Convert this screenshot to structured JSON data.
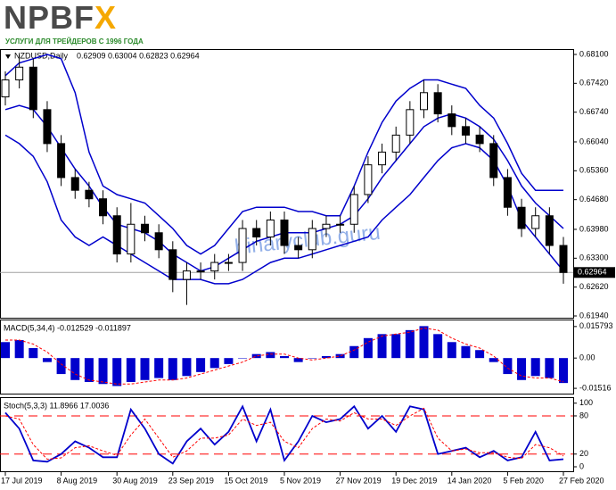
{
  "logo": {
    "name_main": "NPBF",
    "name_accent": "X",
    "tagline": "УСЛУГИ ДЛЯ ТРЕЙДЕРОВ С 1996 ГОДА"
  },
  "chart_data": [
    {
      "type": "candlestick",
      "title": "NZDUSD,Daily",
      "subtitle": "0.62909 0.63004 0.62823 0.62964",
      "watermark": "binaryclub.guru",
      "categories": [
        "17 Jul 2019",
        null,
        null,
        null,
        "8 Aug 2019",
        null,
        null,
        null,
        "30 Aug 2019",
        null,
        null,
        null,
        "23 Sep 2019",
        null,
        null,
        null,
        "15 Oct 2019",
        null,
        null,
        null,
        "5 Nov 2019",
        null,
        null,
        null,
        "27 Nov 2019",
        null,
        null,
        null,
        "19 Dec 2019",
        null,
        null,
        null,
        "14 Jan 2020",
        null,
        null,
        null,
        "5 Feb 2020",
        null,
        null,
        null,
        "27 Feb 2020"
      ],
      "open": [
        0.671,
        0.675,
        0.678,
        0.668,
        0.66,
        0.652,
        0.649,
        0.647,
        0.643,
        0.634,
        0.641,
        0.639,
        0.635,
        0.628,
        0.63,
        0.63,
        0.632,
        0.632,
        0.64,
        0.638,
        0.642,
        0.636,
        0.635,
        0.64,
        0.641,
        0.641,
        0.648,
        0.655,
        0.658,
        0.662,
        0.668,
        0.672,
        0.667,
        0.664,
        0.662,
        0.66,
        0.652,
        0.645,
        0.64,
        0.643,
        0.636
      ],
      "high": [
        0.677,
        0.681,
        0.68,
        0.67,
        0.662,
        0.654,
        0.651,
        0.649,
        0.645,
        0.646,
        0.643,
        0.641,
        0.637,
        0.632,
        0.632,
        0.634,
        0.634,
        0.642,
        0.642,
        0.644,
        0.644,
        0.638,
        0.642,
        0.643,
        0.643,
        0.65,
        0.657,
        0.66,
        0.664,
        0.67,
        0.675,
        0.674,
        0.669,
        0.666,
        0.664,
        0.662,
        0.654,
        0.647,
        0.645,
        0.645,
        0.638
      ],
      "low": [
        0.669,
        0.673,
        0.666,
        0.658,
        0.65,
        0.647,
        0.645,
        0.641,
        0.632,
        0.632,
        0.637,
        0.633,
        0.625,
        0.622,
        0.628,
        0.628,
        0.63,
        0.63,
        0.636,
        0.636,
        0.634,
        0.633,
        0.633,
        0.638,
        0.639,
        0.639,
        0.646,
        0.653,
        0.656,
        0.66,
        0.666,
        0.665,
        0.662,
        0.66,
        0.658,
        0.65,
        0.643,
        0.638,
        0.638,
        0.634,
        0.627
      ],
      "close": [
        0.675,
        0.678,
        0.668,
        0.66,
        0.652,
        0.649,
        0.647,
        0.643,
        0.634,
        0.641,
        0.639,
        0.635,
        0.628,
        0.63,
        0.63,
        0.632,
        0.632,
        0.64,
        0.638,
        0.642,
        0.636,
        0.635,
        0.64,
        0.641,
        0.641,
        0.648,
        0.655,
        0.658,
        0.662,
        0.668,
        0.672,
        0.667,
        0.664,
        0.662,
        0.66,
        0.652,
        0.645,
        0.64,
        0.643,
        0.636,
        0.62964
      ],
      "bands": [
        {
          "color": "#0000cc",
          "values": [
            0.676,
            0.679,
            0.68,
            0.681,
            0.68,
            0.672,
            0.658,
            0.65,
            0.648,
            0.647,
            0.646,
            0.643,
            0.64,
            0.636,
            0.634,
            0.636,
            0.64,
            0.644,
            0.645,
            0.645,
            0.645,
            0.644,
            0.644,
            0.643,
            0.643,
            0.65,
            0.658,
            0.665,
            0.67,
            0.673,
            0.675,
            0.675,
            0.674,
            0.673,
            0.669,
            0.666,
            0.66,
            0.653,
            0.649,
            0.649,
            0.649
          ]
        },
        {
          "color": "#0000cc",
          "values": [
            0.668,
            0.669,
            0.668,
            0.664,
            0.659,
            0.654,
            0.65,
            0.645,
            0.641,
            0.64,
            0.639,
            0.637,
            0.634,
            0.632,
            0.63,
            0.631,
            0.633,
            0.635,
            0.637,
            0.638,
            0.639,
            0.639,
            0.639,
            0.64,
            0.641,
            0.643,
            0.647,
            0.652,
            0.656,
            0.66,
            0.664,
            0.666,
            0.667,
            0.666,
            0.664,
            0.661,
            0.656,
            0.65,
            0.646,
            0.643,
            0.64
          ]
        },
        {
          "color": "#0000cc",
          "values": [
            0.662,
            0.66,
            0.657,
            0.651,
            0.642,
            0.638,
            0.636,
            0.638,
            0.636,
            0.634,
            0.632,
            0.63,
            0.628,
            0.628,
            0.628,
            0.627,
            0.627,
            0.628,
            0.63,
            0.632,
            0.633,
            0.633,
            0.634,
            0.635,
            0.636,
            0.637,
            0.638,
            0.642,
            0.645,
            0.648,
            0.652,
            0.656,
            0.659,
            0.66,
            0.659,
            0.656,
            0.65,
            0.642,
            0.638,
            0.634,
            0.63
          ]
        }
      ],
      "last_price": {
        "value": 0.62964,
        "label": "0.62964"
      },
      "ylim": [
        0.61877,
        0.68226
      ],
      "yticks": [
        {
          "value": 0.681,
          "label": "0.68100"
        },
        {
          "value": 0.6742,
          "label": "0.67420"
        },
        {
          "value": 0.6674,
          "label": "0.66740"
        },
        {
          "value": 0.6604,
          "label": "0.66040"
        },
        {
          "value": 0.6536,
          "label": "0.65360"
        },
        {
          "value": 0.6468,
          "label": "0.64680"
        },
        {
          "value": 0.6398,
          "label": "0.63980"
        },
        {
          "value": 0.633,
          "label": "0.63300"
        },
        {
          "value": 0.6262,
          "label": "0.62620"
        },
        {
          "value": 0.6194,
          "label": "0.61940"
        }
      ]
    },
    {
      "type": "bar",
      "title": "MACD(5,34,4) -0.012529 -0.011897",
      "color": "#0000cc",
      "values": [
        0.008,
        0.009,
        0.005,
        -0.002,
        -0.008,
        -0.011,
        -0.012,
        -0.013,
        -0.014,
        -0.012,
        -0.011,
        -0.01,
        -0.011,
        -0.009,
        -0.007,
        -0.005,
        -0.003,
        0.0,
        0.002,
        0.003,
        0.001,
        -0.002,
        0.0,
        0.001,
        0.002,
        0.006,
        0.01,
        0.012,
        0.012,
        0.014,
        0.016,
        0.012,
        0.008,
        0.006,
        0.004,
        -0.002,
        -0.008,
        -0.011,
        -0.009,
        -0.01,
        -0.0125
      ],
      "signal": {
        "color": "#ff0000",
        "values": [
          0.009,
          0.009,
          0.007,
          0.003,
          -0.003,
          -0.008,
          -0.011,
          -0.012,
          -0.013,
          -0.013,
          -0.012,
          -0.011,
          -0.011,
          -0.01,
          -0.008,
          -0.006,
          -0.004,
          -0.002,
          0.001,
          0.002,
          0.002,
          0.0,
          -0.001,
          0.0,
          0.001,
          0.004,
          0.008,
          0.011,
          0.012,
          0.013,
          0.015,
          0.014,
          0.01,
          0.007,
          0.005,
          0.001,
          -0.005,
          -0.009,
          -0.01,
          -0.01,
          -0.0119
        ]
      },
      "ylim": [
        -0.0178,
        0.0193
      ],
      "yticks": [
        0.015793,
        {
          "value": 0,
          "label": "0.00"
        },
        -0.01516
      ]
    },
    {
      "type": "line",
      "title": "Stoch(5,3,3) 11.8966 17.0036",
      "series": [
        {
          "color": "#0000cc",
          "dashed": false,
          "values": [
            85,
            60,
            10,
            8,
            20,
            40,
            30,
            15,
            15,
            90,
            60,
            20,
            5,
            40,
            60,
            35,
            55,
            95,
            40,
            90,
            10,
            40,
            80,
            70,
            75,
            95,
            60,
            80,
            55,
            95,
            90,
            20,
            25,
            30,
            15,
            25,
            10,
            15,
            55,
            10,
            12
          ]
        },
        {
          "color": "#ff0000",
          "dashed": true,
          "values": [
            80,
            75,
            35,
            12,
            14,
            30,
            33,
            25,
            18,
            50,
            75,
            45,
            15,
            25,
            45,
            45,
            50,
            75,
            65,
            70,
            40,
            30,
            60,
            75,
            72,
            85,
            75,
            75,
            65,
            80,
            92,
            45,
            25,
            28,
            22,
            22,
            15,
            13,
            35,
            30,
            17
          ]
        }
      ],
      "levels": [
        80,
        20
      ],
      "level_color": "#ff0000",
      "ylim": [
        -7,
        108
      ],
      "yticks": [
        100,
        80,
        20,
        0
      ]
    }
  ]
}
